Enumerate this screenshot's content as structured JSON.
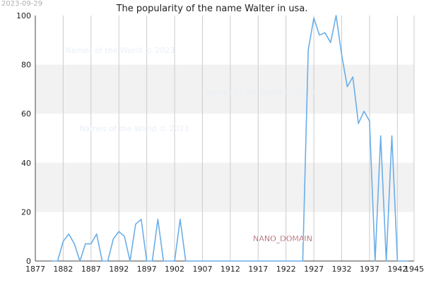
{
  "stamp": "2023-09-29",
  "chart_data": {
    "type": "line",
    "title": "The popularity of the name Walter in usa.",
    "xlabel": "",
    "ylabel": "",
    "xlim": [
      1877,
      1945
    ],
    "ylim": [
      0,
      100
    ],
    "x_ticks": [
      1877,
      1882,
      1887,
      1892,
      1897,
      1902,
      1907,
      1912,
      1917,
      1922,
      1927,
      1932,
      1937,
      1942,
      1945
    ],
    "y_ticks": [
      0,
      20,
      40,
      60,
      80,
      100
    ],
    "grid": true,
    "band_color": "#f2f2f2",
    "grid_color": "#cccccc",
    "watermarks": [
      "Names of the World © 2023",
      "Names of the World © 2023",
      "Names of the World © 2023"
    ],
    "stamp_label": "NANO_DOMAIN",
    "series": [
      {
        "color": "#6aaee8",
        "points": [
          [
            1880,
            0
          ],
          [
            1881,
            0
          ],
          [
            1882,
            8
          ],
          [
            1883,
            11
          ],
          [
            1884,
            7
          ],
          [
            1885,
            0
          ],
          [
            1886,
            7
          ],
          [
            1887,
            7
          ],
          [
            1888,
            11
          ],
          [
            1889,
            0
          ],
          [
            1890,
            0
          ],
          [
            1891,
            9
          ],
          [
            1892,
            12
          ],
          [
            1893,
            10
          ],
          [
            1894,
            0
          ],
          [
            1895,
            15
          ],
          [
            1896,
            17
          ],
          [
            1897,
            0
          ],
          [
            1898,
            0
          ],
          [
            1899,
            17
          ],
          [
            1900,
            0
          ],
          [
            1901,
            0
          ],
          [
            1902,
            0
          ],
          [
            1903,
            17
          ],
          [
            1904,
            0
          ],
          [
            1905,
            0
          ],
          [
            1906,
            0
          ],
          [
            1907,
            0
          ],
          [
            1908,
            0
          ],
          [
            1909,
            0
          ],
          [
            1910,
            0
          ],
          [
            1911,
            0
          ],
          [
            1912,
            0
          ],
          [
            1913,
            0
          ],
          [
            1914,
            0
          ],
          [
            1915,
            0
          ],
          [
            1916,
            0
          ],
          [
            1917,
            0
          ],
          [
            1918,
            0
          ],
          [
            1919,
            0
          ],
          [
            1920,
            0
          ],
          [
            1921,
            0
          ],
          [
            1922,
            0
          ],
          [
            1923,
            0
          ],
          [
            1924,
            0
          ],
          [
            1925,
            0
          ],
          [
            1926,
            86
          ],
          [
            1927,
            99
          ],
          [
            1928,
            92
          ],
          [
            1929,
            93
          ],
          [
            1930,
            89
          ],
          [
            1931,
            100
          ],
          [
            1932,
            84
          ],
          [
            1933,
            71
          ],
          [
            1934,
            75
          ],
          [
            1935,
            56
          ],
          [
            1936,
            61
          ],
          [
            1937,
            57
          ],
          [
            1938,
            0
          ],
          [
            1939,
            51
          ],
          [
            1940,
            0
          ],
          [
            1941,
            51
          ],
          [
            1942,
            0
          ],
          [
            1943,
            0
          ],
          [
            1944,
            0
          ]
        ]
      }
    ]
  }
}
